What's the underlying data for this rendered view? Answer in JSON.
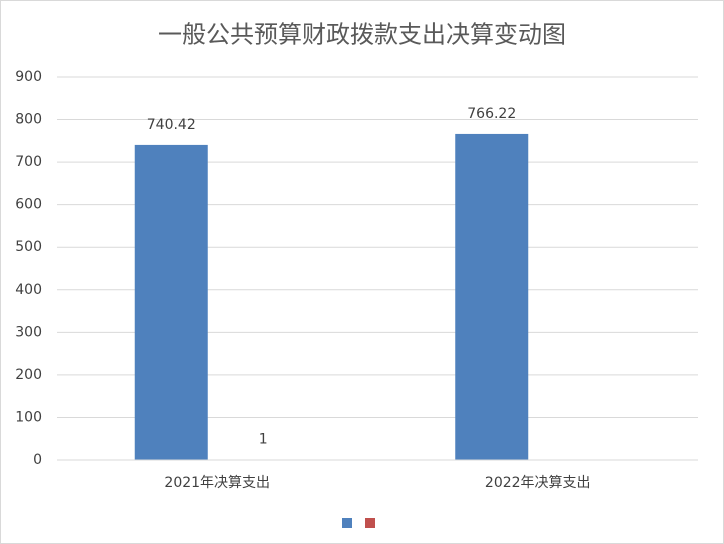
{
  "chart_data": {
    "type": "bar",
    "title": "一般公共预算财政拨款支出决算变动图",
    "categories": [
      "2021年决算支出",
      "2022年决算支出"
    ],
    "series": [
      {
        "color": "#4f81bd",
        "values": [
          740.42,
          766.22
        ]
      },
      {
        "color": "#c0504d",
        "values": [
          1,
          null
        ]
      }
    ],
    "ylim": [
      0,
      900
    ],
    "yticks": [
      0,
      100,
      200,
      300,
      400,
      500,
      600,
      700,
      800,
      900
    ],
    "grid": true
  }
}
